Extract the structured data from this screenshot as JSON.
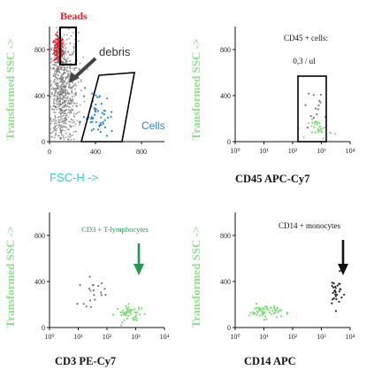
{
  "colors": {
    "green": "#7ddc78",
    "dark_green": "#1c9a4e",
    "red": "#e8242a",
    "blue": "#2a86d8",
    "gray": "#777777",
    "cyan": "#3fc6d8"
  },
  "chart_data": [
    {
      "type": "scatter",
      "title": "",
      "xlabel": "FSC-H ->",
      "ylabel": "Transformed SSC ->",
      "xticks": [
        "0",
        "400",
        "800"
      ],
      "yticks": [
        "0",
        "400",
        "800"
      ],
      "xlim": [
        0,
        1000
      ],
      "ylim": [
        0,
        1000
      ],
      "annotations": {
        "beads": "Beads",
        "debris": "debris",
        "cells": "Cells"
      },
      "series": [
        {
          "name": "Beads",
          "color": "#e8242a",
          "cx": 80,
          "cy": 800,
          "sx": 20,
          "sy": 60,
          "n": 140
        },
        {
          "name": "debris",
          "color": "#777777",
          "cx": 110,
          "cy": 420,
          "sx": 70,
          "sy": 260,
          "n": 850
        },
        {
          "name": "Cells",
          "color": "#2a86d8",
          "cx": 420,
          "cy": 220,
          "sx": 70,
          "sy": 110,
          "n": 55
        }
      ]
    },
    {
      "type": "scatter",
      "title": "",
      "xlabel": "CD45 APC-Cy7",
      "ylabel": "Transformed SSC ->",
      "xticks": [
        "10⁰",
        "10¹",
        "10²",
        "10³",
        "10⁴"
      ],
      "yticks": [
        "0",
        "400",
        "800"
      ],
      "xscale": "log",
      "xlim": [
        1,
        10000
      ],
      "ylim": [
        0,
        1000
      ],
      "annotations": {
        "line1": "CD45 + cells:",
        "line2": "0,3 / ul"
      },
      "series": [
        {
          "name": "",
          "color": "#777777",
          "cx": 720,
          "cy": 320,
          "sx": 0.25,
          "sy": 70,
          "n": 14
        },
        {
          "name": "",
          "color": "#7ddc78",
          "cx": 900,
          "cy": 110,
          "sx": 0.2,
          "sy": 40,
          "n": 30
        }
      ]
    },
    {
      "type": "scatter",
      "title": "",
      "xlabel": "CD3 PE-Cy7",
      "ylabel": "Transformed SSC ->",
      "xticks": [
        "10⁰",
        "10¹",
        "10²",
        "10³",
        "10⁴"
      ],
      "yticks": [
        "0",
        "400",
        "800"
      ],
      "xscale": "log",
      "xlim": [
        1,
        10000
      ],
      "ylim": [
        0,
        1000
      ],
      "annotations": {
        "label": "CD3 + T-lymphocytes"
      },
      "series": [
        {
          "name": "",
          "color": "#777777",
          "cx": 32,
          "cy": 310,
          "sx": 0.25,
          "sy": 60,
          "n": 20
        },
        {
          "name": "",
          "color": "#7ddc78",
          "cx": 650,
          "cy": 120,
          "sx": 0.25,
          "sy": 35,
          "n": 50
        }
      ]
    },
    {
      "type": "scatter",
      "title": "",
      "xlabel": "CD14 APC",
      "ylabel": "Transformed SSC ->",
      "xticks": [
        "10⁰",
        "10¹",
        "10²",
        "10³",
        "10⁴"
      ],
      "yticks": [
        "0",
        "400",
        "800"
      ],
      "xscale": "log",
      "xlim": [
        1,
        10000
      ],
      "ylim": [
        0,
        1000
      ],
      "annotations": {
        "label": "CD14 + monocytes"
      },
      "series": [
        {
          "name": "",
          "color": "#7ddc78",
          "cx": 11,
          "cy": 140,
          "sx": 0.28,
          "sy": 30,
          "n": 60
        },
        {
          "name": "",
          "color": "#222222",
          "cx": 3200,
          "cy": 310,
          "sx": 0.12,
          "sy": 70,
          "n": 28
        }
      ]
    }
  ]
}
